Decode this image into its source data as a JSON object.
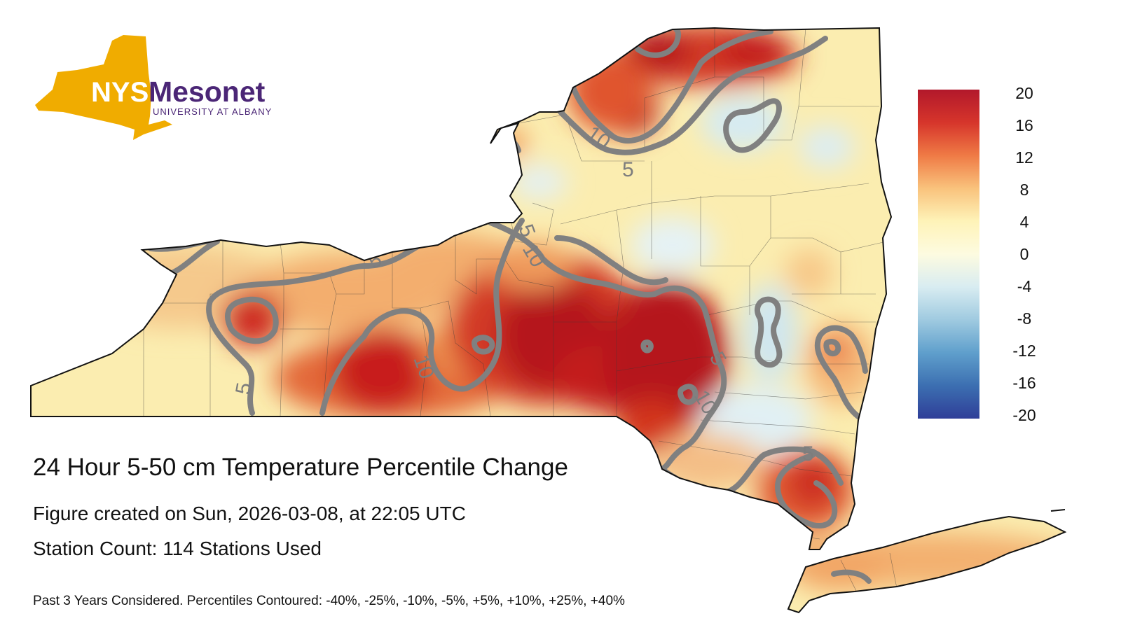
{
  "logo": {
    "nys": "NYS",
    "mesonet": "Mesonet",
    "subtitle": "UNIVERSITY AT ALBANY",
    "state_color": "#f0ac00",
    "text_color": "#4b2676"
  },
  "map": {
    "title": "24 Hour 5-50 cm Temperature Percentile Change",
    "created": "Figure created on Sun, 2026-03-08, at 22:05 UTC",
    "station_count": "Station Count: 114 Stations Used",
    "footnote": "Past 3 Years Considered. Percentiles Contoured: -40%, -25%, -10%, -5%, +5%, +10%, +25%, +40%",
    "contour_labels": [
      "10",
      "5",
      "5",
      "10",
      "5",
      "5",
      "10",
      "5",
      "10",
      "5"
    ],
    "contour_color": "#808080",
    "colors": {
      "background_fill": "#fbedb0",
      "dark_red": "#b5121b",
      "red": "#d7301f",
      "orange": "#ef8a4a",
      "light_orange": "#f7bf7a",
      "light_blue": "#d6ebf2"
    }
  },
  "colorbar": {
    "ticks": [
      "20",
      "16",
      "12",
      "8",
      "4",
      "0",
      "-4",
      "-8",
      "-12",
      "-16",
      "-20"
    ],
    "stops": [
      "#b2182b",
      "#d6352b",
      "#ef7a45",
      "#f9c27c",
      "#fef3b8",
      "#fdfbe0",
      "#d8ecf1",
      "#9fcae0",
      "#5f9fcc",
      "#3c6fb1",
      "#2f3e98"
    ]
  }
}
